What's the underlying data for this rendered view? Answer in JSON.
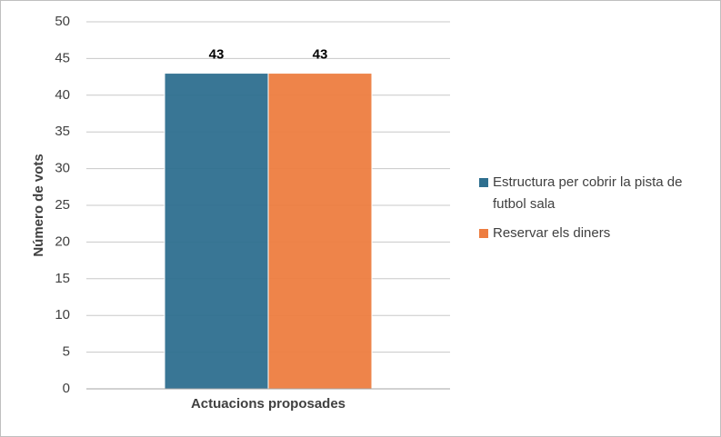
{
  "chart_data": {
    "type": "bar",
    "categories": [
      "Actuacions proposades"
    ],
    "series": [
      {
        "name": "Estructura per cobrir la pista de futbol sala",
        "color": "#2e6f8f",
        "values": [
          43
        ]
      },
      {
        "name": "Reservar els diners",
        "color": "#ed7d40",
        "values": [
          43
        ]
      }
    ],
    "y_label": "Número de vots",
    "ylim": [
      0,
      50
    ],
    "yticks": [
      0,
      5,
      10,
      15,
      20,
      25,
      30,
      35,
      40,
      45,
      50
    ],
    "grid": true,
    "legend": "right"
  }
}
